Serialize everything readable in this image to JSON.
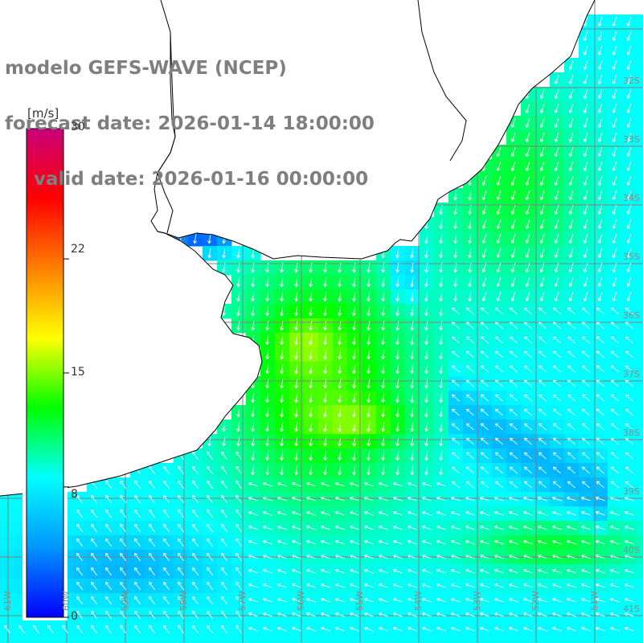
{
  "title": {
    "line1": "modelo GEFS-WAVE (NCEP)",
    "line2": "forecast date: 2026-01-14 18:00:00",
    "line3": "valid date: 2026-01-16 00:00:00"
  },
  "colorbar": {
    "unit": "[m/s]",
    "labels": [
      "30",
      "22",
      "15",
      "8",
      "0"
    ],
    "label_values": [
      30,
      22,
      15,
      8,
      0
    ],
    "range": [
      0,
      30
    ],
    "colors": [
      "#0000ff",
      "#0096ff",
      "#00ffff",
      "#00ff00",
      "#ffff00",
      "#ff8000",
      "#ff0000",
      "#c8007a"
    ]
  },
  "map": {
    "projection": "lat-lon grid",
    "land_color": "#ffffff",
    "grid_color": "#808080",
    "coastline_color": "#000000",
    "lat_labels": [
      "32S",
      "33S",
      "34S",
      "35S",
      "36S",
      "37S",
      "38S",
      "39S",
      "40S",
      "41S"
    ],
    "lon_labels": [
      "61W",
      "60W",
      "59W",
      "58W",
      "57W",
      "56W",
      "55W",
      "54W",
      "53W",
      "52W",
      "51W"
    ],
    "field": "wind speed with direction arrows",
    "arrow_color": "#ffffff"
  }
}
